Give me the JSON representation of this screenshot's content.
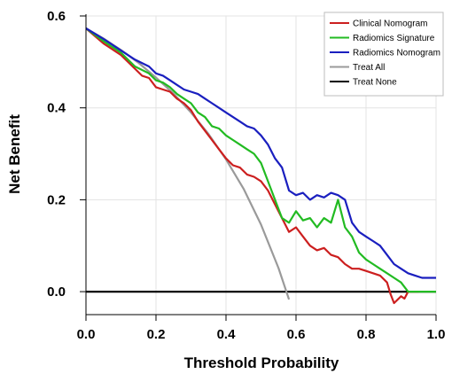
{
  "chart_data": {
    "type": "line",
    "xlabel": "Threshold Probability",
    "ylabel": "Net Benefit",
    "xlim": [
      0,
      1
    ],
    "ylim": [
      -0.05,
      0.6
    ],
    "x_ticks": [
      "0.0",
      "0.2",
      "0.4",
      "0.6",
      "0.8",
      "1.0"
    ],
    "y_ticks": [
      "0.0",
      "0.2",
      "0.4",
      "0.6"
    ],
    "grid": true,
    "legend_position": "top-right",
    "series": [
      {
        "name": "Clinical Nomogram",
        "color": "#cc1f1f",
        "x": [
          0.0,
          0.05,
          0.1,
          0.12,
          0.14,
          0.16,
          0.18,
          0.2,
          0.22,
          0.24,
          0.26,
          0.28,
          0.3,
          0.32,
          0.34,
          0.36,
          0.38,
          0.4,
          0.42,
          0.44,
          0.46,
          0.48,
          0.5,
          0.52,
          0.54,
          0.56,
          0.58,
          0.6,
          0.62,
          0.64,
          0.66,
          0.68,
          0.7,
          0.72,
          0.74,
          0.76,
          0.78,
          0.8,
          0.82,
          0.84,
          0.86,
          0.87,
          0.88,
          0.9,
          0.91,
          0.92,
          0.93,
          0.95
        ],
        "y": [
          0.573,
          0.54,
          0.515,
          0.5,
          0.485,
          0.47,
          0.465,
          0.445,
          0.44,
          0.435,
          0.42,
          0.41,
          0.395,
          0.37,
          0.35,
          0.33,
          0.31,
          0.29,
          0.275,
          0.27,
          0.255,
          0.25,
          0.24,
          0.22,
          0.19,
          0.16,
          0.13,
          0.14,
          0.12,
          0.1,
          0.09,
          0.095,
          0.08,
          0.075,
          0.06,
          0.05,
          0.05,
          0.045,
          0.04,
          0.035,
          0.02,
          -0.005,
          -0.025,
          -0.01,
          -0.015,
          0.0,
          0.0,
          0.0
        ]
      },
      {
        "name": "Radiomics Signature",
        "color": "#22bb22",
        "x": [
          0.0,
          0.05,
          0.1,
          0.14,
          0.18,
          0.2,
          0.22,
          0.24,
          0.26,
          0.28,
          0.3,
          0.32,
          0.34,
          0.36,
          0.38,
          0.4,
          0.42,
          0.44,
          0.46,
          0.48,
          0.5,
          0.52,
          0.54,
          0.56,
          0.58,
          0.6,
          0.62,
          0.64,
          0.66,
          0.68,
          0.7,
          0.72,
          0.74,
          0.76,
          0.78,
          0.8,
          0.82,
          0.84,
          0.86,
          0.88,
          0.9,
          0.92,
          0.94,
          0.96,
          1.0
        ],
        "y": [
          0.573,
          0.545,
          0.52,
          0.49,
          0.475,
          0.46,
          0.455,
          0.445,
          0.43,
          0.42,
          0.41,
          0.39,
          0.38,
          0.36,
          0.355,
          0.34,
          0.33,
          0.32,
          0.31,
          0.3,
          0.28,
          0.24,
          0.2,
          0.16,
          0.15,
          0.175,
          0.155,
          0.16,
          0.14,
          0.16,
          0.15,
          0.2,
          0.14,
          0.12,
          0.085,
          0.07,
          0.06,
          0.05,
          0.04,
          0.03,
          0.02,
          0.0,
          0.0,
          0.0,
          0.0
        ]
      },
      {
        "name": "Radiomics Nomogram",
        "color": "#1a1fbf",
        "x": [
          0.0,
          0.05,
          0.1,
          0.14,
          0.18,
          0.2,
          0.22,
          0.24,
          0.26,
          0.28,
          0.3,
          0.32,
          0.34,
          0.36,
          0.38,
          0.4,
          0.42,
          0.44,
          0.46,
          0.48,
          0.5,
          0.52,
          0.54,
          0.56,
          0.58,
          0.6,
          0.62,
          0.64,
          0.66,
          0.68,
          0.7,
          0.72,
          0.74,
          0.76,
          0.78,
          0.8,
          0.82,
          0.84,
          0.86,
          0.88,
          0.9,
          0.92,
          0.94,
          0.96,
          1.0
        ],
        "y": [
          0.573,
          0.55,
          0.525,
          0.505,
          0.49,
          0.475,
          0.47,
          0.46,
          0.45,
          0.44,
          0.435,
          0.43,
          0.42,
          0.41,
          0.4,
          0.39,
          0.38,
          0.37,
          0.36,
          0.355,
          0.34,
          0.32,
          0.29,
          0.27,
          0.22,
          0.21,
          0.215,
          0.2,
          0.21,
          0.205,
          0.215,
          0.21,
          0.2,
          0.15,
          0.13,
          0.12,
          0.11,
          0.1,
          0.08,
          0.06,
          0.05,
          0.04,
          0.035,
          0.03,
          0.03
        ]
      },
      {
        "name": "Treat All",
        "color": "#9a9a9a",
        "x": [
          0.0,
          0.05,
          0.1,
          0.15,
          0.2,
          0.25,
          0.3,
          0.35,
          0.4,
          0.45,
          0.5,
          0.55,
          0.58
        ],
        "y": [
          0.573,
          0.551,
          0.526,
          0.498,
          0.466,
          0.431,
          0.39,
          0.343,
          0.288,
          0.224,
          0.146,
          0.051,
          -0.017
        ]
      },
      {
        "name": "Treat None",
        "color": "#000000",
        "x": [
          0.0,
          1.0
        ],
        "y": [
          0.0,
          0.0
        ]
      }
    ]
  }
}
